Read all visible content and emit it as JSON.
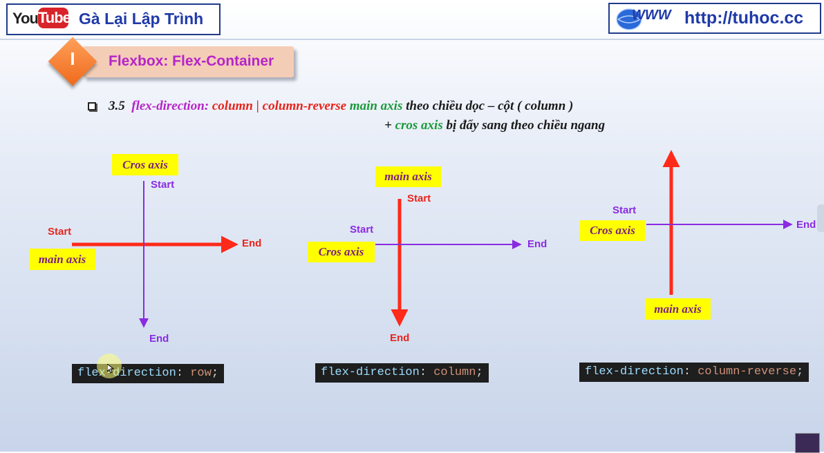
{
  "header": {
    "youtube_you": "You",
    "youtube_tube": "Tube",
    "channel_title": "Gà Lại Lập Trình",
    "www_logo": "WWW",
    "site_url": "http://tuhoc.cc"
  },
  "section": {
    "roman": "I",
    "title": "Flexbox: Flex-Container"
  },
  "bullet": {
    "number": "3.5",
    "prop": "flex-direction:",
    "value": "column | column-reverse",
    "main_axis": "main axis",
    "line1_rest": "theo chiều dọc – cột  ( column )",
    "plus": "+",
    "cross_axis": "cros axis",
    "line2_rest": "bị đẩy sang theo chiều ngang"
  },
  "diagrams": {
    "row": {
      "cross_axis_label": "Cros axis",
      "cross_start": "Start",
      "cross_end": "End",
      "main_start": "Start",
      "main_end": "End",
      "main_axis_label": "main axis",
      "code_prop": "flex-direction",
      "code_value": "row"
    },
    "column": {
      "main_axis_label": "main axis",
      "main_start": "Start",
      "main_end": "End",
      "cross_start": "Start",
      "cross_axis_label": "Cros axis",
      "cross_end": "End",
      "code_prop": "flex-direction",
      "code_value": "column"
    },
    "column_reverse": {
      "cross_start": "Start",
      "cross_axis_label": "Cros axis",
      "cross_end": "End",
      "main_axis_label": "main axis",
      "code_prop": "flex-direction",
      "code_value": "column-reverse"
    }
  },
  "code_punct": {
    "colon": ":",
    "semicolon": ";"
  },
  "colors": {
    "main_axis_arrow": "#ff2a1a",
    "cross_axis_arrow": "#8a2be2",
    "label_bg": "#ffff00",
    "title_blue": "#1f3aa8"
  }
}
